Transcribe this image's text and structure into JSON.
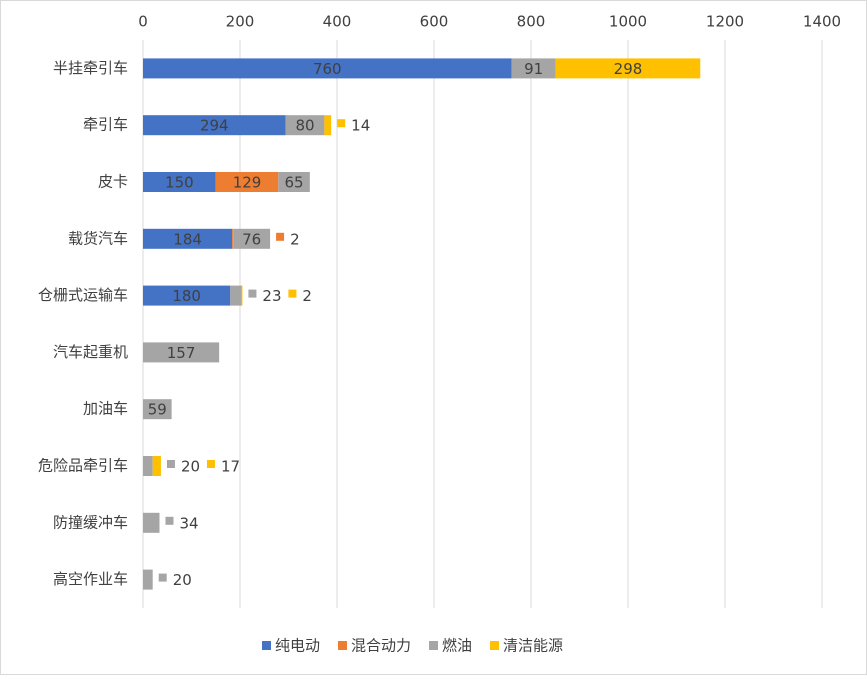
{
  "chart_data": {
    "type": "stacked-bar-horizontal",
    "categories": [
      "半挂牵引车",
      "牵引车",
      "皮卡",
      "载货汽车",
      "仓栅式运输车",
      "汽车起重机",
      "加油车",
      "危险品牵引车",
      "防撞缓冲车",
      "高空作业车"
    ],
    "series": [
      {
        "name": "纯电动",
        "color": "#4472c4",
        "values": [
          760,
          294,
          150,
          184,
          180,
          null,
          null,
          null,
          null,
          null
        ]
      },
      {
        "name": "混合动力",
        "color": "#ed7d31",
        "values": [
          null,
          null,
          129,
          2,
          null,
          null,
          null,
          null,
          null,
          null
        ]
      },
      {
        "name": "燃油",
        "color": "#a5a5a5",
        "values": [
          91,
          80,
          65,
          76,
          23,
          157,
          59,
          20,
          34,
          20
        ]
      },
      {
        "name": "清洁能源",
        "color": "#ffc000",
        "values": [
          298,
          14,
          null,
          null,
          2,
          null,
          null,
          17,
          null,
          null
        ]
      }
    ],
    "xlim": [
      0,
      1400
    ],
    "xticks": [
      0,
      200,
      400,
      600,
      800,
      1000,
      1200,
      1400
    ],
    "grid": true,
    "legend": "bottom"
  }
}
